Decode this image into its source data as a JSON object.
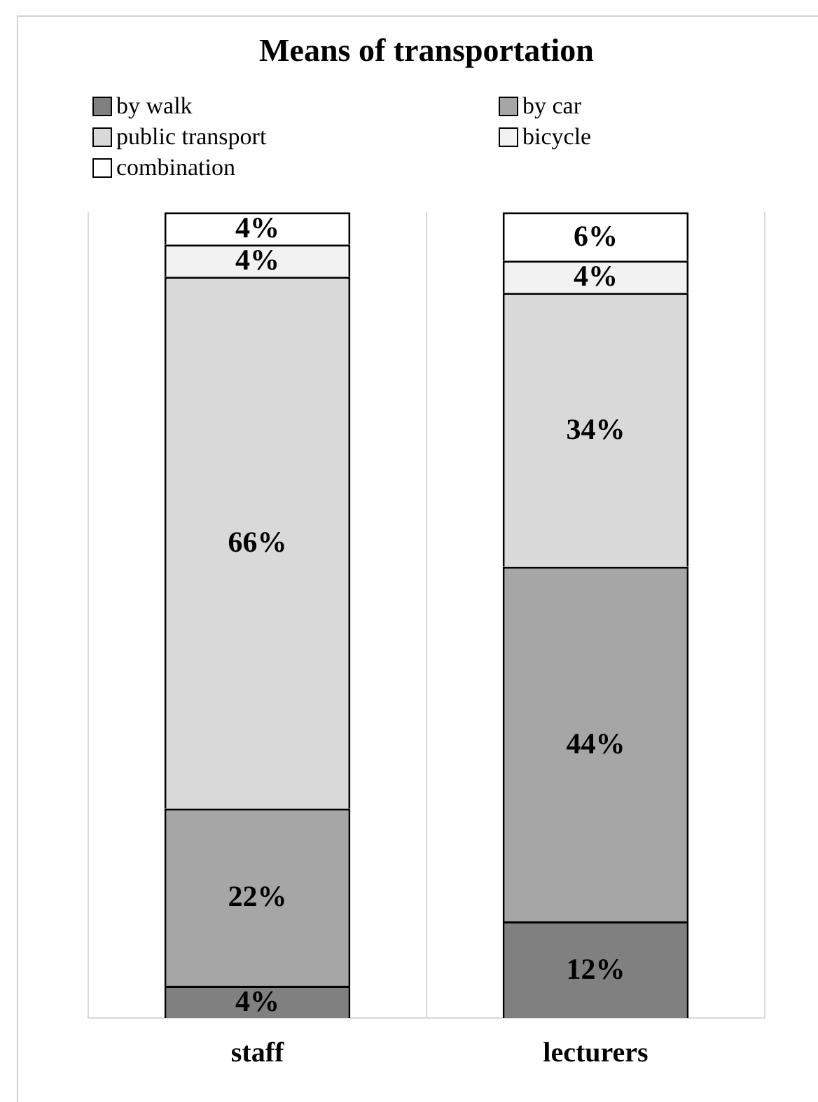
{
  "chart_data": {
    "type": "bar",
    "title": "Means of transportation",
    "categories": [
      "staff",
      "lecturers"
    ],
    "stacked": true,
    "ylim": [
      0,
      100
    ],
    "tick_labels": "x",
    "grid": "x",
    "legend": "top",
    "series": [
      {
        "name": "by walk",
        "color": "#808080",
        "values": [
          4,
          12
        ],
        "value_labels": [
          "4%",
          "12%"
        ]
      },
      {
        "name": "by car",
        "color": "#a6a6a6",
        "values": [
          22,
          44
        ],
        "value_labels": [
          "22%",
          "44%"
        ]
      },
      {
        "name": "public transport",
        "color": "#d9d9d9",
        "values": [
          66,
          34
        ],
        "value_labels": [
          "66%",
          "34%"
        ]
      },
      {
        "name": "bicycle",
        "color": "#f2f2f2",
        "values": [
          4,
          4
        ],
        "value_labels": [
          "4%",
          "4%"
        ]
      },
      {
        "name": "combination",
        "color": "#ffffff",
        "values": [
          4,
          6
        ],
        "value_labels": [
          "4%",
          "6%"
        ]
      }
    ]
  }
}
